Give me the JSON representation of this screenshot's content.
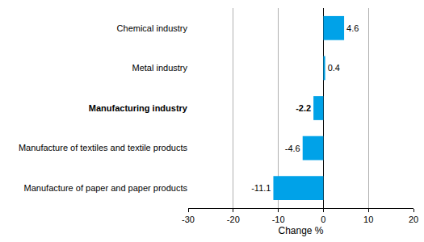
{
  "chart_data": {
    "type": "bar",
    "orientation": "horizontal",
    "categories": [
      "Chemical industry",
      "Metal industry",
      "Manufacturing industry",
      "Manufacture of textiles and textile products",
      "Manufacture of paper and paper products"
    ],
    "values": [
      4.6,
      0.4,
      -2.2,
      -4.6,
      -11.1
    ],
    "color": "#00a2e8",
    "x_label": "Change %",
    "xlim": [
      -30,
      20
    ],
    "xticks": [
      -30,
      -20,
      -10,
      0,
      10,
      20
    ],
    "grid": true,
    "data_labels": true
  }
}
